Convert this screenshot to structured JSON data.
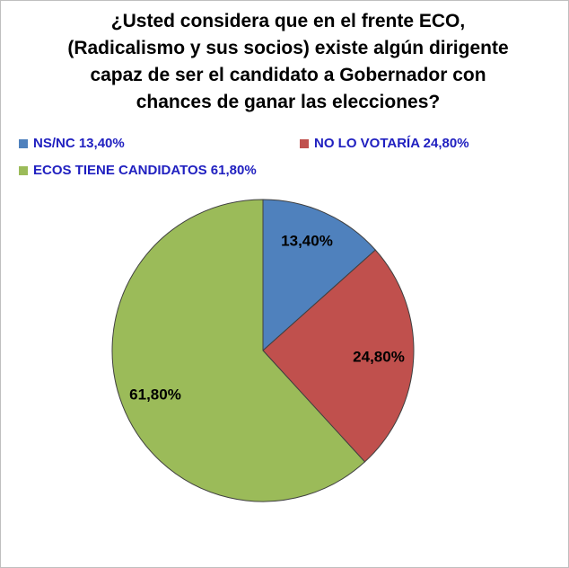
{
  "chart_data": {
    "type": "pie",
    "title_lines": [
      "¿Usted considera que  en el frente ECO,",
      "(Radicalismo y sus socios)  existe algún  dirigente",
      "capaz de ser el candidato a Gobernador con",
      "chances de ganar las elecciones?"
    ],
    "legend_placement": "top",
    "slices": [
      {
        "legend": "NS/NC 13,40%",
        "label": "13,40%",
        "value": 13.4,
        "color": "#4f81bd"
      },
      {
        "legend": "NO LO VOTARÍA 24,80%",
        "label": "24,80%",
        "value": 24.8,
        "color": "#c0504d"
      },
      {
        "legend": "ECOS TIENE CANDIDATOS 61,80%",
        "label": "61,80%",
        "value": 61.8,
        "color": "#9bbb59"
      }
    ]
  }
}
